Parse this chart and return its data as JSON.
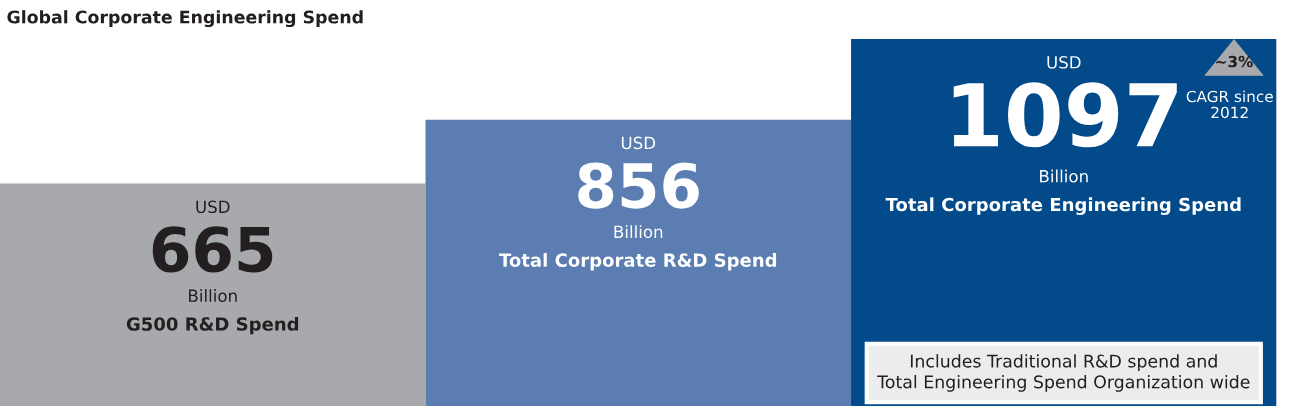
{
  "chart_data": {
    "type": "bar",
    "title": "Global Corporate Engineering Spend",
    "categories": [
      "G500 R&D Spend",
      "Total Corporate R&D Spend",
      "Total Corporate Engineering Spend"
    ],
    "values": [
      665,
      856,
      1097
    ],
    "colors": [
      "#a7a9ac",
      "#5b7db1",
      "#024a8a"
    ],
    "data_labels": true,
    "annotations": [
      "USD",
      "Billion",
      "USD",
      "Billion",
      "USD",
      "Billion",
      "~3%",
      "CAGR since 2012",
      "Includes Traditional R&D spend and Total Engineering Spend Organization wide"
    ]
  }
}
